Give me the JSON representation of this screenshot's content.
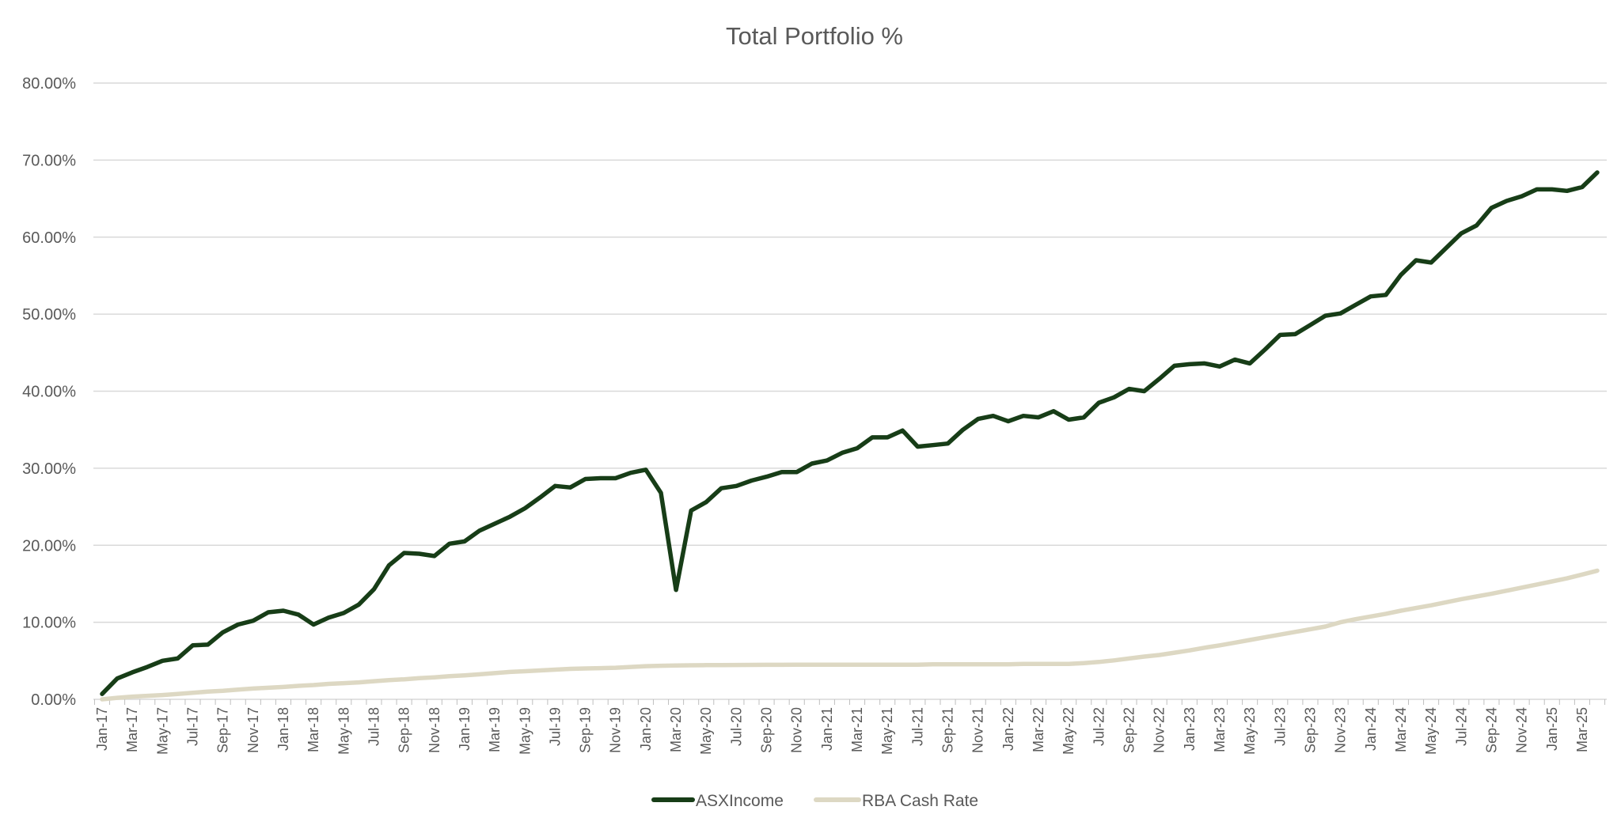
{
  "chart_data": {
    "type": "line",
    "title": "Total Portfolio %",
    "xlabel": "",
    "ylabel": "",
    "ylim": [
      0,
      80
    ],
    "y_ticks": [
      "0.00%",
      "10.00%",
      "20.00%",
      "30.00%",
      "40.00%",
      "50.00%",
      "60.00%",
      "70.00%",
      "80.00%"
    ],
    "y_tick_values": [
      0,
      10,
      20,
      30,
      40,
      50,
      60,
      70,
      80
    ],
    "grid": true,
    "legend_position": "bottom",
    "x_start": "2017-01",
    "x_months": 100,
    "x_tick_every": 2,
    "x_tick_labels": [
      "Jan-17",
      "Mar-17",
      "May-17",
      "Jul-17",
      "Sep-17",
      "Nov-17",
      "Jan-18",
      "Mar-18",
      "May-18",
      "Jul-18",
      "Sep-18",
      "Nov-18",
      "Jan-19",
      "Mar-19",
      "May-19",
      "Jul-19",
      "Sep-19",
      "Nov-19",
      "Jan-20",
      "Mar-20",
      "May-20",
      "Jul-20",
      "Sep-20",
      "Nov-20",
      "Jan-21",
      "Mar-21",
      "May-21",
      "Jul-21",
      "Sep-21",
      "Nov-21",
      "Jan-22",
      "Mar-22",
      "May-22",
      "Jul-22",
      "Sep-22",
      "Nov-22",
      "Jan-23",
      "Mar-23",
      "May-23",
      "Jul-23",
      "Sep-23",
      "Nov-23",
      "Jan-24",
      "Mar-24",
      "May-24",
      "Jul-24",
      "Sep-24",
      "Nov-24",
      "Jan-25",
      "Mar-25"
    ],
    "series": [
      {
        "name": "ASXIncome",
        "color": "#173d17",
        "values": [
          0.7,
          2.7,
          3.5,
          4.2,
          5.0,
          5.3,
          7.0,
          7.1,
          8.7,
          9.7,
          10.2,
          11.3,
          11.5,
          11.0,
          9.7,
          10.6,
          11.2,
          12.3,
          14.3,
          17.4,
          19.0,
          18.9,
          18.6,
          20.2,
          20.5,
          21.9,
          22.8,
          23.7,
          24.8,
          26.2,
          27.7,
          27.5,
          28.6,
          28.7,
          28.7,
          29.4,
          29.8,
          26.8,
          14.2,
          24.5,
          25.6,
          27.4,
          27.7,
          28.4,
          28.9,
          29.5,
          29.5,
          30.6,
          31.0,
          32.0,
          32.6,
          34.0,
          34.0,
          34.9,
          32.8,
          33.0,
          33.2,
          35.0,
          36.4,
          36.8,
          36.1,
          36.8,
          36.6,
          37.4,
          36.3,
          36.6,
          38.5,
          39.2,
          40.3,
          40.0,
          41.6,
          43.3,
          43.5,
          43.6,
          43.2,
          44.1,
          43.6,
          45.4,
          47.3,
          47.4,
          48.6,
          49.8,
          50.1,
          51.2,
          52.3,
          52.5,
          55.1,
          57.0,
          56.7,
          58.6,
          60.5,
          61.5,
          63.8,
          64.7,
          65.3,
          66.2,
          66.2,
          66.0,
          66.5,
          68.4
        ]
      },
      {
        "name": "RBA Cash Rate",
        "color": "#ddd8c3",
        "values": [
          0.0,
          0.2,
          0.35,
          0.45,
          0.55,
          0.7,
          0.85,
          1.0,
          1.1,
          1.25,
          1.4,
          1.5,
          1.6,
          1.75,
          1.85,
          2.0,
          2.1,
          2.2,
          2.35,
          2.5,
          2.6,
          2.75,
          2.85,
          3.0,
          3.1,
          3.25,
          3.4,
          3.55,
          3.65,
          3.75,
          3.85,
          3.95,
          4.0,
          4.05,
          4.1,
          4.2,
          4.3,
          4.35,
          4.4,
          4.42,
          4.44,
          4.45,
          4.46,
          4.47,
          4.48,
          4.48,
          4.49,
          4.49,
          4.5,
          4.5,
          4.5,
          4.5,
          4.5,
          4.5,
          4.5,
          4.55,
          4.55,
          4.55,
          4.55,
          4.55,
          4.55,
          4.6,
          4.6,
          4.6,
          4.6,
          4.7,
          4.85,
          5.05,
          5.3,
          5.55,
          5.75,
          6.05,
          6.35,
          6.7,
          7.0,
          7.35,
          7.7,
          8.05,
          8.4,
          8.75,
          9.1,
          9.45,
          10.0,
          10.4,
          10.75,
          11.1,
          11.5,
          11.85,
          12.2,
          12.6,
          13.0,
          13.35,
          13.7,
          14.1,
          14.5,
          14.9,
          15.3,
          15.7,
          16.2,
          16.7
        ]
      }
    ]
  }
}
